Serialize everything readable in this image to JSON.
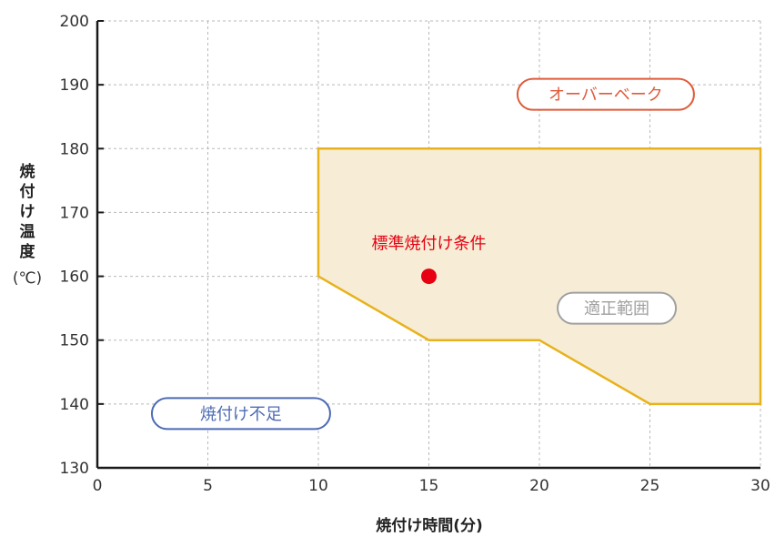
{
  "chart_data": {
    "type": "area",
    "xlabel": "焼付け時間(分)",
    "ylabel_lines": [
      "焼",
      "付",
      "け",
      "温",
      "度"
    ],
    "ylabel_unit": "(℃)",
    "xlim": [
      0,
      30
    ],
    "ylim": [
      130,
      200
    ],
    "x_ticks": [
      0,
      5,
      10,
      15,
      20,
      25,
      30
    ],
    "y_ticks": [
      130,
      140,
      150,
      160,
      170,
      180,
      190,
      200
    ],
    "grid": true,
    "region": {
      "points": [
        [
          10,
          180
        ],
        [
          30,
          180
        ],
        [
          30,
          140
        ],
        [
          25,
          140
        ],
        [
          20,
          150
        ],
        [
          15,
          150
        ],
        [
          10,
          160
        ]
      ],
      "fill": "#f7edd6",
      "stroke": "#e8b21c"
    },
    "points": [
      {
        "x": 15,
        "y": 160,
        "label": "標準焼付け条件",
        "color": "#e60012"
      }
    ],
    "annotations": {
      "overbake": {
        "text": "オーバーベーク",
        "color": "#e05a3a",
        "x": 23,
        "y": 188.5
      },
      "optimal": {
        "text": "適正範囲",
        "color": "#a0a0a0",
        "x": 23.5,
        "y": 155
      },
      "underbake": {
        "text": "焼付け不足",
        "color": "#4d6bb3",
        "x": 6.5,
        "y": 138.5
      }
    },
    "colors": {
      "axis": "#1a1a1a",
      "grid": "#b8b8b8"
    }
  }
}
